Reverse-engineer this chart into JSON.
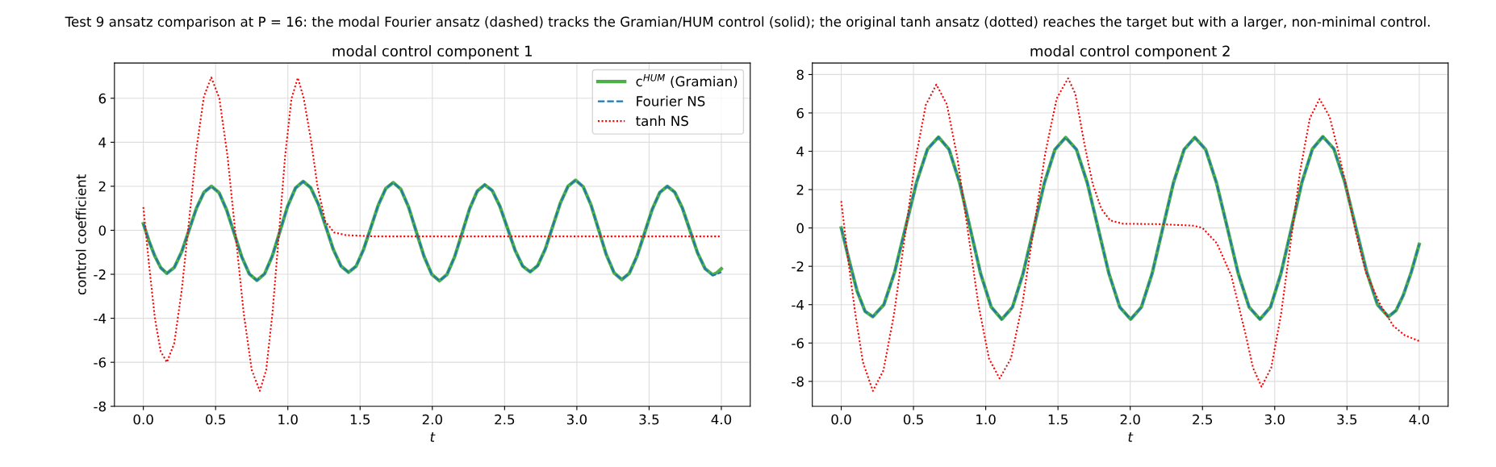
{
  "chart_data": [
    {
      "type": "line",
      "title": "modal control component 1",
      "xlabel": "t",
      "ylabel": "control coefficient",
      "annotations": [
        "Test 9 ansatz comparison at P = 16: the modal Fourier ansatz (dashed) tracks the Gramian/HUM control (solid); the original tanh ansatz (dotted) reaches the target but with a larger, non-minimal control."
      ],
      "xlim": [
        -0.2,
        4.2
      ],
      "xticks": [
        {
          "value": 0,
          "label": "0.0"
        },
        0.5,
        {
          "value": 1,
          "label": "1.0"
        },
        1.5,
        {
          "value": 2,
          "label": "2.0"
        },
        2.5,
        {
          "value": 3,
          "label": "3.0"
        },
        3.5,
        {
          "value": 4,
          "label": "4.0"
        }
      ],
      "ylim": [
        -8,
        7.6
      ],
      "yticks": [
        -8,
        -6,
        -4,
        -2,
        0,
        2,
        4,
        6
      ],
      "grid": true,
      "legend": "top right",
      "series": [
        {
          "name": "c$^{HUM}$ (Gramian)",
          "color": "#4daf4a",
          "line_style": "solid",
          "x": [
            0,
            0.04,
            0.08,
            0.12,
            0.163,
            0.214,
            0.266,
            0.317,
            0.368,
            0.42,
            0.471,
            0.524,
            0.576,
            0.629,
            0.681,
            0.734,
            0.786,
            0.839,
            0.893,
            0.946,
            0.999,
            1.053,
            1.106,
            1.158,
            1.211,
            1.263,
            1.315,
            1.368,
            1.42,
            1.472,
            1.523,
            1.575,
            1.626,
            1.678,
            1.729,
            1.782,
            1.836,
            1.889,
            1.942,
            1.996,
            2.049,
            2.101,
            2.154,
            2.206,
            2.258,
            2.311,
            2.363,
            2.415,
            2.468,
            2.52,
            2.572,
            2.625,
            2.677,
            2.729,
            2.782,
            2.834,
            2.886,
            2.939,
            2.991,
            3.044,
            3.098,
            3.151,
            3.204,
            3.258,
            3.311,
            3.363,
            3.416,
            3.469,
            3.521,
            3.574,
            3.626,
            3.678,
            3.731,
            3.783,
            3.835,
            3.888,
            3.94,
            3.97,
            4.0
          ],
          "values": [
            0.3,
            -0.5,
            -1.18,
            -1.7,
            -1.96,
            -1.69,
            -0.97,
            0.02,
            1.01,
            1.73,
            2.0,
            1.71,
            0.93,
            -0.14,
            -1.21,
            -1.99,
            -2.28,
            -1.98,
            -1.16,
            -0.03,
            1.1,
            1.92,
            2.22,
            1.94,
            1.19,
            0.16,
            -0.88,
            -1.63,
            -1.91,
            -1.64,
            -0.89,
            0.13,
            1.15,
            1.9,
            2.17,
            1.87,
            1.05,
            -0.07,
            -1.18,
            -2.0,
            -2.3,
            -2.01,
            -1.21,
            -0.12,
            0.98,
            1.78,
            2.07,
            1.8,
            1.08,
            0.09,
            -0.9,
            -1.63,
            -1.89,
            -1.61,
            -0.85,
            0.2,
            1.24,
            2.0,
            2.28,
            1.98,
            1.15,
            0.02,
            -1.11,
            -1.94,
            -2.24,
            -1.96,
            -1.18,
            -0.12,
            0.94,
            1.72,
            2.0,
            1.73,
            1.0,
            -0.01,
            -1.02,
            -1.75,
            -2.02,
            -1.93,
            -1.75
          ]
        },
        {
          "name": "Fourier NS",
          "color": "#1f77b4",
          "line_style": "dashed",
          "x": [
            0,
            0.04,
            0.08,
            0.12,
            0.163,
            0.214,
            0.266,
            0.317,
            0.368,
            0.42,
            0.471,
            0.524,
            0.576,
            0.629,
            0.681,
            0.734,
            0.786,
            0.839,
            0.893,
            0.946,
            0.999,
            1.053,
            1.106,
            1.158,
            1.211,
            1.263,
            1.315,
            1.368,
            1.42,
            1.472,
            1.523,
            1.575,
            1.626,
            1.678,
            1.729,
            1.782,
            1.836,
            1.889,
            1.942,
            1.996,
            2.049,
            2.101,
            2.154,
            2.206,
            2.258,
            2.311,
            2.363,
            2.415,
            2.468,
            2.52,
            2.572,
            2.625,
            2.677,
            2.729,
            2.782,
            2.834,
            2.886,
            2.939,
            2.991,
            3.044,
            3.098,
            3.151,
            3.204,
            3.258,
            3.311,
            3.363,
            3.416,
            3.469,
            3.521,
            3.574,
            3.626,
            3.678,
            3.731,
            3.783,
            3.835,
            3.888,
            3.94,
            3.97,
            4.0
          ],
          "values": [
            0.3,
            -0.5,
            -1.18,
            -1.7,
            -1.96,
            -1.69,
            -0.97,
            0.02,
            1.01,
            1.73,
            2.0,
            1.71,
            0.93,
            -0.14,
            -1.21,
            -1.99,
            -2.28,
            -1.98,
            -1.16,
            -0.03,
            1.1,
            1.92,
            2.22,
            1.94,
            1.19,
            0.16,
            -0.88,
            -1.63,
            -1.91,
            -1.64,
            -0.89,
            0.13,
            1.15,
            1.9,
            2.17,
            1.87,
            1.05,
            -0.07,
            -1.18,
            -2.0,
            -2.3,
            -2.01,
            -1.21,
            -0.12,
            0.98,
            1.78,
            2.07,
            1.8,
            1.08,
            0.09,
            -0.9,
            -1.63,
            -1.89,
            -1.61,
            -0.85,
            0.2,
            1.24,
            2.0,
            2.28,
            1.98,
            1.15,
            0.02,
            -1.11,
            -1.94,
            -2.24,
            -1.96,
            -1.18,
            -0.12,
            0.94,
            1.72,
            2.0,
            1.73,
            1.0,
            -0.01,
            -1.02,
            -1.75,
            -2.05,
            -2.0,
            -1.9
          ]
        },
        {
          "name": "tanh NS",
          "color": "#ff0000",
          "line_style": "dotted",
          "x": [
            0,
            0.04,
            0.08,
            0.12,
            0.163,
            0.214,
            0.265,
            0.317,
            0.368,
            0.419,
            0.47,
            0.526,
            0.582,
            0.638,
            0.694,
            0.75,
            0.806,
            0.85,
            0.894,
            0.938,
            0.981,
            1.025,
            1.069,
            1.11,
            1.16,
            1.205,
            1.26,
            1.32,
            1.4,
            1.6,
            4.0
          ],
          "values": [
            1.05,
            -1.6,
            -4.0,
            -5.5,
            -6.0,
            -5.13,
            -2.76,
            0.48,
            3.71,
            6.08,
            6.95,
            6.0,
            3.39,
            -0.18,
            -3.74,
            -6.35,
            -7.3,
            -6.35,
            -3.74,
            -0.19,
            3.37,
            5.98,
            6.93,
            6.0,
            4.1,
            2.0,
            0.4,
            -0.1,
            -0.22,
            -0.28,
            -0.28
          ]
        }
      ]
    },
    {
      "type": "line",
      "title": "modal control component 2",
      "xlabel": "t",
      "xlim": [
        -0.2,
        4.2
      ],
      "xticks": [
        {
          "value": 0,
          "label": "0.0"
        },
        0.5,
        {
          "value": 1,
          "label": "1.0"
        },
        1.5,
        {
          "value": 2,
          "label": "2.0"
        },
        2.5,
        {
          "value": 3,
          "label": "3.0"
        },
        3.5,
        {
          "value": 4,
          "label": "4.0"
        }
      ],
      "ylim": [
        -9.3,
        8.6
      ],
      "yticks": [
        -8,
        -6,
        -4,
        -2,
        0,
        2,
        4,
        6,
        8
      ],
      "grid": true,
      "series": [
        {
          "color": "#4daf4a",
          "line_style": "solid",
          "x": [
            0,
            0.055,
            0.11,
            0.165,
            0.219,
            0.295,
            0.37,
            0.446,
            0.522,
            0.597,
            0.673,
            0.746,
            0.819,
            0.892,
            0.965,
            1.038,
            1.111,
            1.185,
            1.258,
            1.332,
            1.406,
            1.479,
            1.553,
            1.628,
            1.703,
            1.778,
            1.853,
            1.928,
            2.003,
            2.077,
            2.151,
            2.225,
            2.299,
            2.373,
            2.447,
            2.522,
            2.597,
            2.673,
            2.748,
            2.823,
            2.898,
            2.971,
            3.043,
            3.116,
            3.188,
            3.261,
            3.333,
            3.409,
            3.484,
            3.56,
            3.636,
            3.711,
            3.787,
            3.84,
            3.89,
            3.945,
            4.0
          ],
          "values": [
            0,
            -1.7,
            -3.3,
            -4.35,
            -4.63,
            -4.0,
            -2.29,
            0.06,
            2.4,
            4.11,
            4.74,
            4.1,
            2.37,
            -0.01,
            -2.39,
            -4.12,
            -4.76,
            -4.13,
            -2.39,
            -0.02,
            2.35,
            4.09,
            4.72,
            4.09,
            2.35,
            -0.02,
            -2.39,
            -4.13,
            -4.76,
            -4.13,
            -2.39,
            -0.02,
            2.35,
            4.09,
            4.72,
            4.09,
            2.35,
            -0.02,
            -2.39,
            -4.13,
            -4.76,
            -4.12,
            -2.38,
            0,
            2.38,
            4.12,
            4.76,
            4.13,
            2.41,
            0.07,
            -2.28,
            -4.0,
            -4.63,
            -4.3,
            -3.5,
            -2.3,
            -0.85
          ]
        },
        {
          "color": "#1f77b4",
          "line_style": "dashed",
          "x": [
            0,
            0.055,
            0.11,
            0.165,
            0.219,
            0.295,
            0.37,
            0.446,
            0.522,
            0.597,
            0.673,
            0.746,
            0.819,
            0.892,
            0.965,
            1.038,
            1.111,
            1.185,
            1.258,
            1.332,
            1.406,
            1.479,
            1.553,
            1.628,
            1.703,
            1.778,
            1.853,
            1.928,
            2.003,
            2.077,
            2.151,
            2.225,
            2.299,
            2.373,
            2.447,
            2.522,
            2.597,
            2.673,
            2.748,
            2.823,
            2.898,
            2.971,
            3.043,
            3.116,
            3.188,
            3.261,
            3.333,
            3.409,
            3.484,
            3.56,
            3.636,
            3.711,
            3.787,
            3.84,
            3.89,
            3.945,
            4.0
          ],
          "values": [
            0,
            -1.7,
            -3.3,
            -4.35,
            -4.63,
            -4.0,
            -2.29,
            0.06,
            2.4,
            4.11,
            4.74,
            4.1,
            2.37,
            -0.01,
            -2.39,
            -4.12,
            -4.76,
            -4.13,
            -2.39,
            -0.02,
            2.35,
            4.09,
            4.72,
            4.09,
            2.35,
            -0.02,
            -2.39,
            -4.13,
            -4.76,
            -4.13,
            -2.39,
            -0.02,
            2.35,
            4.09,
            4.72,
            4.09,
            2.35,
            -0.02,
            -2.39,
            -4.13,
            -4.76,
            -4.12,
            -2.38,
            0,
            2.38,
            4.12,
            4.76,
            4.13,
            2.41,
            0.07,
            -2.28,
            -4.0,
            -4.63,
            -4.3,
            -3.5,
            -2.3,
            -0.85
          ]
        },
        {
          "color": "#ff0000",
          "line_style": "dotted",
          "x": [
            0,
            0.05,
            0.1,
            0.15,
            0.219,
            0.292,
            0.365,
            0.439,
            0.512,
            0.585,
            0.658,
            0.731,
            0.804,
            0.877,
            0.95,
            1.023,
            1.096,
            1.175,
            1.254,
            1.333,
            1.412,
            1.491,
            1.57,
            1.62,
            1.68,
            1.74,
            1.8,
            1.86,
            1.95,
            2.2,
            2.44,
            2.5,
            2.6,
            2.7,
            2.8,
            2.85,
            2.909,
            2.976,
            3.043,
            3.11,
            3.176,
            3.243,
            3.31,
            3.38,
            3.44,
            3.5,
            3.56,
            3.63,
            3.73,
            3.82,
            3.9,
            4.0
          ],
          "values": [
            1.4,
            -1.8,
            -4.6,
            -7.0,
            -8.5,
            -7.43,
            -4.51,
            -0.51,
            3.49,
            6.41,
            7.48,
            6.45,
            3.65,
            -0.19,
            -4.02,
            -6.82,
            -7.85,
            -6.8,
            -3.94,
            -0.03,
            3.89,
            6.75,
            7.8,
            7.0,
            4.5,
            2.3,
            1.0,
            0.4,
            0.22,
            0.2,
            0.12,
            0.0,
            -0.8,
            -2.5,
            -5.6,
            -7.3,
            -8.28,
            -7.28,
            -4.53,
            -0.78,
            2.97,
            5.72,
            6.72,
            5.8,
            4.0,
            2.0,
            -0.2,
            -2.3,
            -4.0,
            -5.1,
            -5.6,
            -5.9
          ]
        }
      ]
    }
  ]
}
